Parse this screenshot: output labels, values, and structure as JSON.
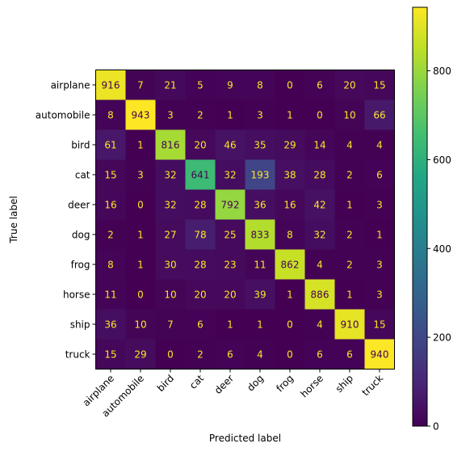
{
  "chart_data": {
    "type": "heatmap",
    "title": "",
    "xlabel": "Predicted label",
    "ylabel": "True label",
    "categories": [
      "airplane",
      "automobile",
      "bird",
      "cat",
      "deer",
      "dog",
      "frog",
      "horse",
      "ship",
      "truck"
    ],
    "matrix": [
      [
        916,
        7,
        21,
        5,
        9,
        8,
        0,
        6,
        20,
        15
      ],
      [
        8,
        943,
        3,
        2,
        1,
        3,
        1,
        0,
        10,
        66
      ],
      [
        61,
        1,
        816,
        20,
        46,
        35,
        29,
        14,
        4,
        4
      ],
      [
        15,
        3,
        32,
        641,
        32,
        193,
        38,
        28,
        2,
        6
      ],
      [
        16,
        0,
        32,
        28,
        792,
        36,
        16,
        42,
        1,
        3
      ],
      [
        2,
        1,
        27,
        78,
        25,
        833,
        8,
        32,
        2,
        1
      ],
      [
        8,
        1,
        30,
        28,
        23,
        11,
        862,
        4,
        2,
        3
      ],
      [
        11,
        0,
        10,
        20,
        20,
        39,
        1,
        886,
        1,
        3
      ],
      [
        36,
        10,
        7,
        6,
        1,
        1,
        0,
        4,
        910,
        15
      ],
      [
        15,
        29,
        0,
        2,
        6,
        4,
        0,
        6,
        6,
        940
      ]
    ],
    "colormap": "viridis",
    "value_range": [
      0,
      943
    ],
    "colorbar": {
      "ticks": [
        0,
        200,
        400,
        600,
        800
      ],
      "tick_labels": [
        "0",
        "200",
        "400",
        "600",
        "800"
      ]
    },
    "text_colors": {
      "on_dark": "#FDE725",
      "on_light": "#440154"
    },
    "grid": false
  }
}
